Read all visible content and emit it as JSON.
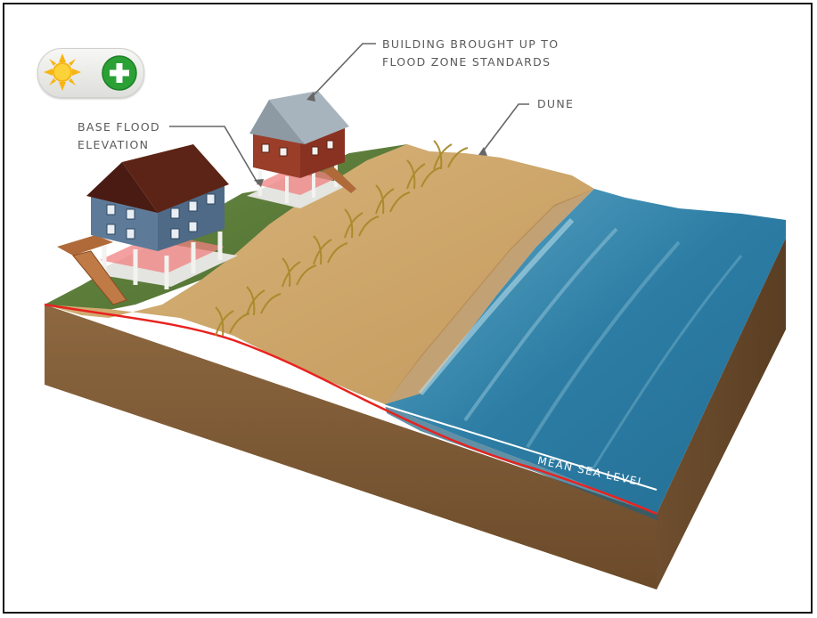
{
  "labels": {
    "building_line1": "BUILDING BROUGHT UP TO",
    "building_line2": "FLOOD ZONE STANDARDS",
    "dune": "DUNE",
    "base_flood_line1": "BASE FLOOD",
    "base_flood_line2": "ELEVATION",
    "mean_sea_level": "MEAN SEA LEVEL"
  },
  "controls": {
    "sun_icon": "sun-icon",
    "add_icon": "plus-circle-icon"
  },
  "colors": {
    "flood_line": "#e8231f",
    "water": "#2e7fa6",
    "sand": "#cfa96e",
    "soil": "#7a5632",
    "grass": "#5f7f3c",
    "toggle_plus": "#2aa035",
    "sun": "#f7b514"
  }
}
